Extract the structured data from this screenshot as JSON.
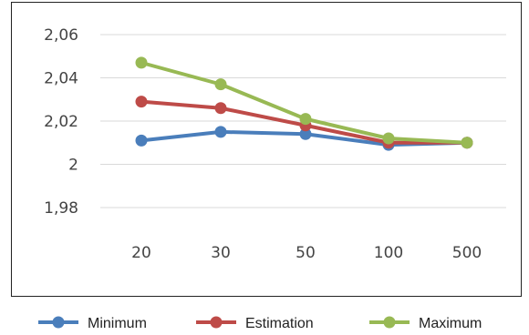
{
  "chart_data": {
    "type": "line",
    "title": "",
    "xlabel": "",
    "ylabel": "",
    "categories": [
      "20",
      "30",
      "50",
      "100",
      "500"
    ],
    "y_tick_labels": [
      "2,06",
      "2,04",
      "2,02",
      "2",
      "1,98"
    ],
    "y_ticks": [
      2.06,
      2.04,
      2.02,
      2.0,
      1.98
    ],
    "ylim": [
      1.98,
      2.06
    ],
    "grid": true,
    "legend_position": "bottom",
    "series": [
      {
        "name": "Minimum",
        "color": "#4a7ebb",
        "values": [
          2.011,
          2.015,
          2.014,
          2.009,
          2.01
        ]
      },
      {
        "name": "Estimation",
        "color": "#be4b48",
        "values": [
          2.029,
          2.026,
          2.018,
          2.01,
          2.01
        ]
      },
      {
        "name": "Maximum",
        "color": "#98b954",
        "values": [
          2.047,
          2.037,
          2.021,
          2.012,
          2.01
        ]
      }
    ]
  }
}
